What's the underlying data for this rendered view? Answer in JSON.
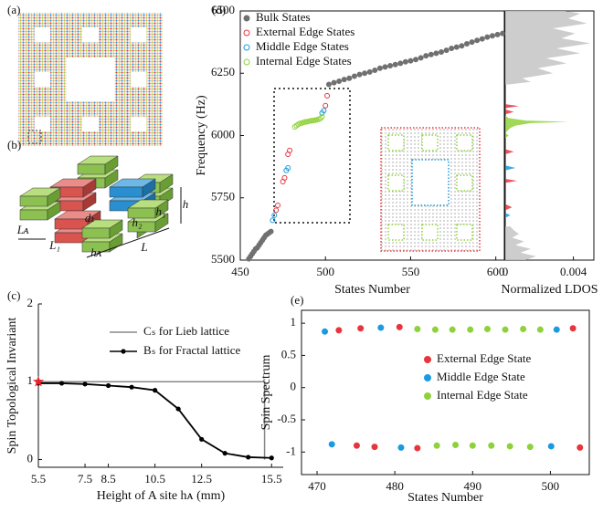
{
  "panel_labels": [
    "(a)",
    "(b)",
    "(c)",
    "(d)",
    "(e)"
  ],
  "schematic_labels": [
    "dₜ",
    "h₂",
    "h₁",
    "h",
    "Lᴀ",
    "L₁",
    "hᴀ",
    "L"
  ],
  "chart_data": [
    {
      "type": "line",
      "xlabel": "Height of A site hᴀ (mm)",
      "ylabel": "Spin Topological Invariant",
      "xlim": [
        5.5,
        16
      ],
      "xticks": [
        5.5,
        7.5,
        8.5,
        10.5,
        12.5,
        15.5
      ],
      "ylim": [
        -0.1,
        2
      ],
      "yticks": [
        0,
        1,
        2
      ],
      "series": [
        {
          "name": "Cₛ for Lieb lattice",
          "color": "#888888",
          "x": [
            5.5,
            15.2,
            15.2
          ],
          "values": [
            1,
            1,
            0
          ],
          "markers": false
        },
        {
          "name": "Bₛ for Fractal lattice",
          "color": "#000000",
          "x": [
            5.5,
            6.5,
            7.5,
            8.5,
            9.5,
            10.5,
            11.5,
            12.5,
            13.5,
            14.5,
            15.5
          ],
          "values": [
            0.98,
            0.98,
            0.97,
            0.95,
            0.93,
            0.89,
            0.65,
            0.26,
            0.08,
            0.03,
            0.02
          ],
          "markers": true
        }
      ],
      "highlight": {
        "x": 5.5,
        "y": 1,
        "color": "#e8212b"
      }
    },
    {
      "type": "scatter",
      "xlabel": "States Number",
      "ylabel": "Frequency (Hz)",
      "xlim": [
        450,
        605
      ],
      "xticks": [
        450,
        500,
        550,
        600
      ],
      "ylim": [
        5500,
        6500
      ],
      "yticks": [
        5500,
        5750,
        6000,
        6250,
        6500
      ],
      "series": [
        {
          "name": "Bulk States",
          "color": "#707070",
          "marker": "filled",
          "x": [
            455,
            456,
            457,
            458,
            459,
            460,
            461,
            462,
            463,
            464,
            465,
            466,
            467,
            468,
            502,
            505,
            508,
            511,
            514,
            517,
            520,
            523,
            526,
            529,
            532,
            535,
            538,
            541,
            544,
            547,
            550,
            553,
            556,
            559,
            562,
            565,
            568,
            571,
            574,
            577,
            580,
            583,
            586,
            589,
            592,
            595,
            598,
            601,
            604
          ],
          "values": [
            5505,
            5515,
            5525,
            5535,
            5545,
            5550,
            5560,
            5570,
            5580,
            5590,
            5600,
            5605,
            5610,
            5615,
            6205,
            6212,
            6218,
            6225,
            6230,
            6238,
            6245,
            6250,
            6255,
            6262,
            6270,
            6275,
            6280,
            6285,
            6290,
            6296,
            6300,
            6305,
            6312,
            6320,
            6325,
            6330,
            6335,
            6342,
            6350,
            6355,
            6360,
            6368,
            6375,
            6382,
            6388,
            6395,
            6400,
            6405,
            6410
          ]
        },
        {
          "name": "External Edge States",
          "color": "#e8343d",
          "marker": "open",
          "x": [
            471,
            472,
            475,
            476,
            478,
            479,
            500,
            501
          ],
          "values": [
            5700,
            5720,
            5815,
            5830,
            5925,
            5940,
            6120,
            6160
          ]
        },
        {
          "name": "Middle Edge States",
          "color": "#1a9ae0",
          "marker": "open",
          "x": [
            469,
            470,
            477,
            478,
            498,
            499
          ],
          "values": [
            5660,
            5680,
            5860,
            5870,
            6090,
            6100
          ]
        },
        {
          "name": "Internal Edge States",
          "color": "#8fd13a",
          "marker": "open",
          "x": [
            482,
            483,
            484,
            485,
            486,
            487,
            488,
            489,
            490,
            491,
            492,
            493,
            494,
            495,
            496,
            497,
            498
          ],
          "values": [
            6035,
            6040,
            6045,
            6048,
            6050,
            6052,
            6055,
            6055,
            6057,
            6058,
            6060,
            6060,
            6062,
            6063,
            6065,
            6068,
            6075
          ]
        }
      ]
    },
    {
      "type": "area",
      "xlabel": "Normalized LDOS",
      "xlim": [
        0,
        0.0052
      ],
      "xticks": [
        0,
        0.004
      ],
      "ylim": [
        5500,
        6500
      ],
      "series": [
        {
          "color": "#c4c4c4",
          "y": [
            5500,
            5515,
            5530,
            5545,
            5560,
            5575,
            5590,
            5605,
            5620,
            5635
          ],
          "values": [
            0.0012,
            0.0018,
            0.0009,
            0.0015,
            0.0006,
            0.0011,
            0.0004,
            0.0008,
            0.0005,
            0.0003
          ]
        },
        {
          "color": "#c4c4c4",
          "y": [
            6205,
            6215,
            6230,
            6250,
            6270,
            6290,
            6310,
            6330,
            6350,
            6370,
            6390,
            6410,
            6430,
            6450,
            6470,
            6490,
            6500
          ],
          "values": [
            0.0002,
            0.0015,
            0.001,
            0.0028,
            0.0019,
            0.0036,
            0.0024,
            0.0044,
            0.003,
            0.005,
            0.0033,
            0.0041,
            0.0028,
            0.0048,
            0.0037,
            0.0044,
            0.0035
          ]
        },
        {
          "color": "#8fd13a",
          "y": [
            5990,
            6000,
            6010,
            6030,
            6040,
            6050,
            6055,
            6060,
            6070,
            6080
          ],
          "values": [
            0,
            0.0002,
            0,
            0.0003,
            0.0006,
            0.0015,
            0.0037,
            0.0012,
            0.0002,
            0
          ]
        },
        {
          "color": "#e8343d",
          "y": [
            5700,
            5712,
            5725,
            5810,
            5818,
            5826,
            5925,
            5935,
            5945,
            6085,
            6095,
            6105,
            6110,
            6118,
            6126
          ],
          "values": [
            0,
            0.0004,
            0,
            0,
            0.0007,
            0,
            0,
            0.0005,
            0,
            0,
            0.0005,
            0,
            0,
            0.0008,
            0
          ]
        },
        {
          "color": "#1a9ae0",
          "y": [
            5670,
            5680,
            5690,
            5860,
            5870,
            5880
          ],
          "values": [
            0,
            0.0003,
            0,
            0,
            0.0006,
            0
          ]
        }
      ]
    },
    {
      "type": "scatter",
      "xlabel": "States Number",
      "ylabel": "Spin Spectrum",
      "xlim": [
        468,
        505
      ],
      "xticks": [
        470,
        480,
        490,
        500
      ],
      "ylim": [
        -1.35,
        1.2
      ],
      "yticks": [
        -1,
        -0.5,
        0,
        0.5,
        1
      ],
      "series": [
        {
          "name": "External Edge State",
          "color": "#e8343d",
          "marker": "filled",
          "x": [
            472.8,
            475.6,
            480.6,
            502.9,
            475.1,
            477.4,
            482.9,
            503.8
          ],
          "values": [
            0.89,
            0.92,
            0.94,
            0.92,
            -0.9,
            -0.92,
            -0.94,
            -0.93
          ]
        },
        {
          "name": "Middle Edge State",
          "color": "#1a9ae0",
          "marker": "filled",
          "x": [
            471,
            478.2,
            500.8,
            471.9,
            480.8,
            500.1
          ],
          "values": [
            0.87,
            0.93,
            0.9,
            -0.88,
            -0.93,
            -0.91
          ]
        },
        {
          "name": "Internal Edge State",
          "color": "#8fd13a",
          "marker": "filled",
          "x": [
            482.9,
            485.2,
            487.4,
            489.7,
            491.9,
            494.2,
            496.5,
            498.7,
            485.4,
            487.8,
            490,
            492.4,
            494.8,
            497.4
          ],
          "values": [
            0.91,
            0.9,
            0.9,
            0.9,
            0.91,
            0.9,
            0.91,
            0.9,
            -0.9,
            -0.89,
            -0.9,
            -0.9,
            -0.91,
            -0.92
          ]
        }
      ]
    }
  ]
}
